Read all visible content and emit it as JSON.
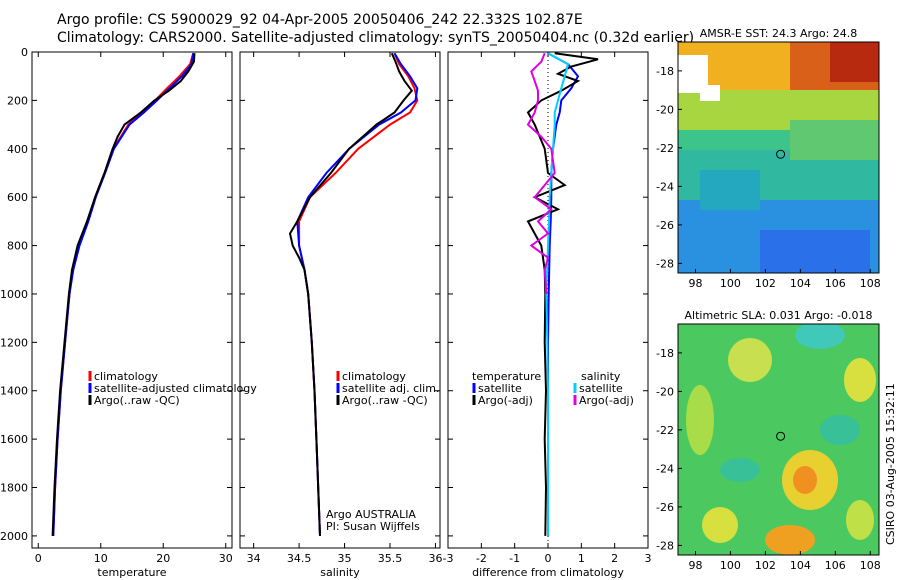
{
  "header": {
    "line1": "Argo profile: CS 5900029_92 04-Apr-2005 20050406_242 22.332S 102.87E",
    "line2": "Climatology: CARS2000. Satellite-adjusted climatology: synTS_20050404.nc (0.32d earlier)"
  },
  "side_stamp": "CSIRO 03-Aug-2005 15:32:11",
  "colors": {
    "climatology": "#ff0000",
    "satellite": "#0000ff",
    "argo": "#000000",
    "sal_satellite": "#00d0ff",
    "sal_argo": "#e000e0"
  },
  "chart_data": [
    {
      "id": "temperature",
      "type": "line",
      "xlabel": "temperature",
      "xlim": [
        -1,
        31
      ],
      "ylim": [
        2050,
        0
      ],
      "xticks": [
        "0",
        "10",
        "20",
        "30"
      ],
      "xtick_values": [
        0,
        10,
        20,
        30
      ],
      "yticks": [
        "0",
        "200",
        "400",
        "600",
        "800",
        "1000",
        "1200",
        "1400",
        "1600",
        "1800",
        "2000"
      ],
      "ytick_values": [
        0,
        200,
        400,
        600,
        800,
        1000,
        1200,
        1400,
        1600,
        1800,
        2000
      ],
      "legend": [
        "climatology",
        "satellite-adjusted climatology",
        "Argo(..raw -QC)"
      ],
      "series": [
        {
          "name": "climatology",
          "color": "#ff0000",
          "depth": [
            5,
            50,
            100,
            150,
            200,
            250,
            300,
            400,
            500,
            600,
            700,
            800,
            900,
            1000,
            1200,
            1400,
            1600,
            1800,
            2000
          ],
          "values": [
            24.8,
            24.3,
            22.6,
            20.6,
            18.7,
            16.6,
            14.4,
            12.0,
            10.6,
            9.1,
            7.9,
            6.5,
            5.5,
            5.0,
            4.3,
            3.6,
            3.1,
            2.7,
            2.4
          ]
        },
        {
          "name": "satellite-adjusted climatology",
          "color": "#0000ff",
          "depth": [
            5,
            50,
            100,
            150,
            200,
            250,
            300,
            400,
            500,
            600,
            700,
            800,
            900,
            1000,
            1200,
            1400,
            1600,
            1800,
            2000
          ],
          "values": [
            24.8,
            24.5,
            23.0,
            21.0,
            19.0,
            16.9,
            14.6,
            12.1,
            10.7,
            9.2,
            8.0,
            6.6,
            5.6,
            5.0,
            4.3,
            3.6,
            3.1,
            2.7,
            2.4
          ]
        },
        {
          "name": "Argo(..raw -QC)",
          "color": "#000000",
          "depth": [
            5,
            40,
            80,
            120,
            160,
            200,
            250,
            300,
            350,
            400,
            500,
            600,
            700,
            800,
            900,
            1000,
            1200,
            1400,
            1600,
            1800,
            2000
          ],
          "values": [
            25.0,
            24.9,
            24.0,
            22.8,
            20.9,
            18.6,
            16.4,
            13.8,
            12.7,
            11.9,
            10.6,
            9.1,
            7.8,
            6.3,
            5.4,
            4.9,
            4.2,
            3.5,
            3.0,
            2.6,
            2.3
          ]
        }
      ]
    },
    {
      "id": "salinity",
      "type": "line",
      "xlabel": "salinity",
      "xlim": [
        33.85,
        36.05
      ],
      "ylim": [
        2050,
        0
      ],
      "xticks": [
        "34",
        "34.5",
        "35",
        "35.5",
        "36"
      ],
      "xtick_values": [
        34,
        34.5,
        35,
        35.5,
        36
      ],
      "legend": [
        "climatology",
        "satellite adj. clim.",
        "Argo(..raw -QC)"
      ],
      "annotation": [
        "Argo AUSTRALIA",
        "PI: Susan Wijffels"
      ],
      "series": [
        {
          "name": "climatology",
          "color": "#ff0000",
          "depth": [
            5,
            50,
            100,
            150,
            200,
            250,
            300,
            400,
            500,
            600,
            700,
            800,
            900,
            1000,
            1200,
            1400,
            1600,
            1800,
            2000
          ],
          "values": [
            35.55,
            35.6,
            35.7,
            35.77,
            35.8,
            35.72,
            35.5,
            35.15,
            34.9,
            34.62,
            34.5,
            34.5,
            34.56,
            34.6,
            34.64,
            34.67,
            34.69,
            34.71,
            34.73
          ]
        },
        {
          "name": "satellite adj. clim.",
          "color": "#0000ff",
          "depth": [
            5,
            50,
            100,
            150,
            200,
            250,
            300,
            400,
            500,
            600,
            700,
            800,
            900,
            1000,
            1200,
            1400,
            1600,
            1800,
            2000
          ],
          "values": [
            35.55,
            35.62,
            35.72,
            35.8,
            35.78,
            35.62,
            35.38,
            35.05,
            34.8,
            34.6,
            34.48,
            34.5,
            34.56,
            34.6,
            34.64,
            34.67,
            34.69,
            34.71,
            34.73
          ]
        },
        {
          "name": "Argo(..raw -QC)",
          "color": "#000000",
          "depth": [
            5,
            40,
            80,
            120,
            160,
            200,
            250,
            300,
            350,
            400,
            500,
            600,
            700,
            750,
            800,
            850,
            900,
            1000,
            1200,
            1400,
            1600,
            1800,
            2000
          ],
          "values": [
            35.52,
            35.56,
            35.6,
            35.66,
            35.74,
            35.65,
            35.55,
            35.35,
            35.2,
            35.05,
            34.85,
            34.62,
            34.48,
            34.4,
            34.43,
            34.5,
            34.56,
            34.6,
            34.64,
            34.67,
            34.69,
            34.71,
            34.73
          ]
        }
      ]
    },
    {
      "id": "difference",
      "type": "line",
      "xlabel": "difference from climatology",
      "xlim": [
        -3,
        3
      ],
      "ylim": [
        2050,
        0
      ],
      "xticks": [
        "-3",
        "-2",
        "-1",
        "0",
        "1",
        "2",
        "3"
      ],
      "xtick_values": [
        -3,
        -2,
        -1,
        0,
        1,
        2,
        3
      ],
      "legend_temperature": [
        "temperature",
        "satellite",
        "Argo(-adj)"
      ],
      "legend_salinity": [
        "salinity",
        "satellite",
        "Argo(-adj)"
      ],
      "series": [
        {
          "name": "temperature satellite",
          "color": "#0000ff",
          "depth": [
            5,
            50,
            100,
            150,
            200,
            250,
            300,
            400,
            500,
            600,
            700,
            800,
            1000,
            1200,
            1400,
            1600,
            1800,
            2000
          ],
          "values": [
            0.0,
            0.6,
            0.9,
            0.7,
            0.4,
            0.35,
            0.25,
            0.15,
            0.1,
            0.1,
            0.08,
            0.05,
            0.02,
            0.0,
            0.0,
            0.0,
            0.0,
            0.0
          ]
        },
        {
          "name": "temperature Argo(-adj)",
          "color": "#000000",
          "depth": [
            5,
            30,
            60,
            90,
            120,
            160,
            200,
            250,
            300,
            400,
            500,
            550,
            600,
            650,
            700,
            800,
            900,
            1000,
            1200,
            1400,
            1600,
            1800,
            2000
          ],
          "values": [
            0.2,
            1.5,
            0.7,
            0.3,
            0.9,
            0.4,
            -0.2,
            -0.6,
            -0.4,
            -0.1,
            0.0,
            0.5,
            -0.4,
            0.3,
            -0.6,
            -0.2,
            -0.1,
            -0.08,
            -0.1,
            -0.06,
            -0.1,
            -0.06,
            -0.08
          ]
        },
        {
          "name": "salinity satellite",
          "color": "#00d0ff",
          "depth": [
            5,
            50,
            100,
            150,
            200,
            250,
            300,
            400,
            500,
            600,
            700,
            800,
            1000,
            1200,
            1400,
            1600,
            1800,
            2000
          ],
          "values": [
            0.0,
            0.6,
            0.5,
            0.4,
            0.3,
            0.2,
            0.2,
            0.15,
            0.1,
            0.05,
            0.03,
            0.0,
            -0.05,
            -0.02,
            0.0,
            0.0,
            0.0,
            0.0
          ]
        },
        {
          "name": "salinity Argo(-adj)",
          "color": "#e000e0",
          "depth": [
            5,
            40,
            80,
            120,
            160,
            200,
            250,
            300,
            350,
            400,
            500,
            600,
            650,
            700,
            750,
            800,
            850,
            900,
            1000
          ],
          "values": [
            -0.1,
            -0.2,
            -0.5,
            -0.4,
            -0.3,
            -0.3,
            -0.4,
            -0.6,
            -0.2,
            0.1,
            0.2,
            -0.4,
            0.1,
            -0.3,
            0.0,
            -0.5,
            0.0,
            -0.1,
            -0.05
          ]
        }
      ]
    },
    {
      "id": "sst_map",
      "type": "heatmap",
      "title": "AMSR-E SST: 24.3 Argo: 24.8",
      "xticks": [
        "98",
        "100",
        "102",
        "104",
        "106",
        "108"
      ],
      "yticks": [
        "-18",
        "-20",
        "-22",
        "-24",
        "-26",
        "-28"
      ],
      "xlim": [
        97,
        108.5
      ],
      "ylim": [
        -28.5,
        -16.5
      ],
      "marker": [
        102.87,
        -22.33
      ]
    },
    {
      "id": "sla_map",
      "type": "heatmap",
      "title": "Altimetric SLA: 0.031 Argo: -0.018",
      "xticks": [
        "98",
        "100",
        "102",
        "104",
        "106",
        "108"
      ],
      "yticks": [
        "-18",
        "-20",
        "-22",
        "-24",
        "-26",
        "-28"
      ],
      "xlim": [
        97,
        108.5
      ],
      "ylim": [
        -28.5,
        -16.5
      ],
      "marker": [
        102.87,
        -22.33
      ]
    }
  ]
}
